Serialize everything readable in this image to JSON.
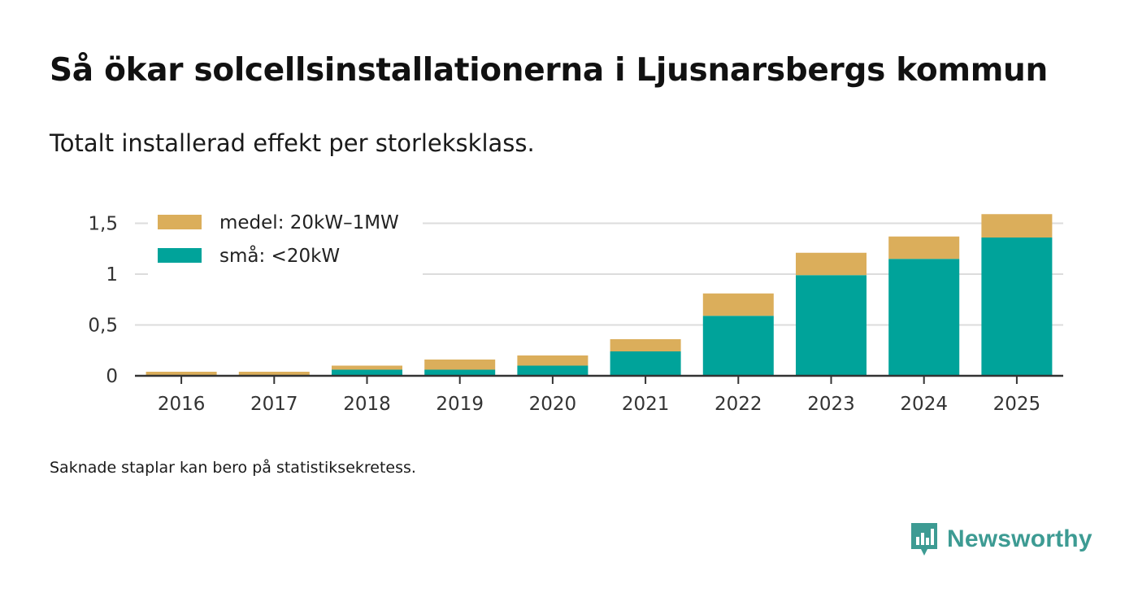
{
  "header": {
    "title": "Så ökar solcellsinstallationerna i Ljusnarsbergs kommun",
    "subtitle": "Totalt installerad effekt per storleksklass."
  },
  "footnote": "Saknade staplar kan bero på statistiksekretess.",
  "brand": {
    "name": "Newsworthy",
    "icon": "newsworthy-logo-icon",
    "color": "#3d9b93"
  },
  "chart_data": {
    "type": "bar",
    "stacked": true,
    "title": "Så ökar solcellsinstallationerna i Ljusnarsbergs kommun",
    "subtitle": "Totalt installerad effekt per storleksklass.",
    "xlabel": "",
    "ylabel": "",
    "ylim": [
      0,
      1.6
    ],
    "yticks": [
      0,
      0.5,
      1,
      1.5
    ],
    "ytick_labels": [
      "0",
      "0,5",
      "1",
      "1,5"
    ],
    "grid": true,
    "legend_position": "top-left",
    "categories": [
      "2016",
      "2017",
      "2018",
      "2019",
      "2020",
      "2021",
      "2022",
      "2023",
      "2024",
      "2025"
    ],
    "series": [
      {
        "name": "små: <20kW",
        "color": "#00a39a",
        "values": [
          0.0,
          0.0,
          0.06,
          0.06,
          0.1,
          0.24,
          0.59,
          0.99,
          1.15,
          1.36
        ]
      },
      {
        "name": "medel: 20kW–1MW",
        "color": "#dbae5b",
        "values": [
          0.04,
          0.04,
          0.04,
          0.1,
          0.1,
          0.12,
          0.22,
          0.22,
          0.22,
          0.23
        ]
      }
    ],
    "legend": [
      "medel: 20kW–1MW",
      "små: <20kW"
    ]
  }
}
